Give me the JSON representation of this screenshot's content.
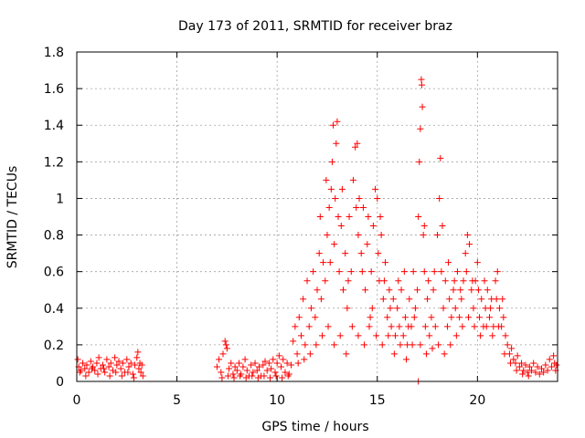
{
  "colors": {
    "series": "#ff0000",
    "grid": "#a0a0a0",
    "axis": "#000000",
    "background": "#ffffff"
  },
  "chart_data": {
    "type": "scatter",
    "title": "Day 173 of 2011, SRMTID for receiver braz",
    "xlabel": "GPS time / hours",
    "ylabel": "SRMTID / TECUs",
    "xlim": [
      0,
      24
    ],
    "ylim": [
      0,
      1.8
    ],
    "xticks": [
      0,
      5,
      10,
      15,
      20
    ],
    "yticks": [
      0,
      0.2,
      0.4,
      0.6,
      0.8,
      1,
      1.2,
      1.4,
      1.6,
      1.8
    ],
    "xtick_labels": [
      "0",
      "5",
      "10",
      "15",
      "20"
    ],
    "ytick_labels": [
      "0",
      "0.2",
      "0.4",
      "0.6",
      "0.8",
      "1",
      "1.2",
      "1.4",
      "1.6",
      "1.8"
    ],
    "grid": true,
    "marker": "+",
    "series": [
      {
        "name": "SRMTID",
        "points": [
          [
            0.05,
            0.12
          ],
          [
            0.1,
            0.08
          ],
          [
            0.2,
            0.06
          ],
          [
            0.3,
            0.1
          ],
          [
            0.4,
            0.07
          ],
          [
            0.5,
            0.09
          ],
          [
            0.6,
            0.05
          ],
          [
            0.7,
            0.11
          ],
          [
            0.8,
            0.08
          ],
          [
            0.9,
            0.06
          ],
          [
            1.0,
            0.1
          ],
          [
            1.1,
            0.13
          ],
          [
            1.2,
            0.07
          ],
          [
            1.3,
            0.09
          ],
          [
            1.4,
            0.05
          ],
          [
            1.5,
            0.12
          ],
          [
            1.6,
            0.08
          ],
          [
            1.7,
            0.1
          ],
          [
            1.8,
            0.06
          ],
          [
            1.9,
            0.13
          ],
          [
            2.0,
            0.09
          ],
          [
            2.1,
            0.11
          ],
          [
            2.2,
            0.07
          ],
          [
            2.3,
            0.1
          ],
          [
            2.4,
            0.05
          ],
          [
            2.5,
            0.12
          ],
          [
            2.6,
            0.08
          ],
          [
            2.7,
            0.1
          ],
          [
            2.8,
            0.04
          ],
          [
            2.9,
            0.09
          ],
          [
            3.0,
            0.13
          ],
          [
            3.05,
            0.16
          ],
          [
            3.1,
            0.07
          ],
          [
            3.15,
            0.1
          ],
          [
            3.2,
            0.05
          ],
          [
            3.25,
            0.09
          ],
          [
            3.3,
            0.03
          ],
          [
            0.15,
            0.05
          ],
          [
            0.45,
            0.03
          ],
          [
            0.75,
            0.07
          ],
          [
            1.05,
            0.04
          ],
          [
            1.35,
            0.07
          ],
          [
            1.65,
            0.03
          ],
          [
            1.95,
            0.05
          ],
          [
            2.25,
            0.03
          ],
          [
            2.55,
            0.05
          ],
          [
            2.85,
            0.02
          ],
          [
            7.0,
            0.08
          ],
          [
            7.1,
            0.12
          ],
          [
            7.2,
            0.05
          ],
          [
            7.3,
            0.15
          ],
          [
            7.4,
            0.22
          ],
          [
            7.45,
            0.2
          ],
          [
            7.5,
            0.18
          ],
          [
            7.6,
            0.07
          ],
          [
            7.7,
            0.1
          ],
          [
            7.8,
            0.04
          ],
          [
            7.9,
            0.08
          ],
          [
            8.0,
            0.06
          ],
          [
            8.1,
            0.1
          ],
          [
            8.2,
            0.04
          ],
          [
            8.3,
            0.08
          ],
          [
            8.4,
            0.12
          ],
          [
            8.5,
            0.06
          ],
          [
            8.6,
            0.03
          ],
          [
            8.7,
            0.09
          ],
          [
            8.8,
            0.05
          ],
          [
            8.9,
            0.1
          ],
          [
            9.0,
            0.06
          ],
          [
            9.1,
            0.08
          ],
          [
            9.2,
            0.03
          ],
          [
            9.3,
            0.09
          ],
          [
            9.4,
            0.11
          ],
          [
            9.5,
            0.06
          ],
          [
            9.6,
            0.1
          ],
          [
            9.7,
            0.07
          ],
          [
            9.8,
            0.12
          ],
          [
            9.9,
            0.05
          ],
          [
            10.0,
            0.1
          ],
          [
            10.1,
            0.14
          ],
          [
            10.2,
            0.08
          ],
          [
            10.3,
            0.12
          ],
          [
            10.4,
            0.05
          ],
          [
            10.5,
            0.1
          ],
          [
            10.6,
            0.04
          ],
          [
            10.7,
            0.09
          ],
          [
            7.25,
            0.02
          ],
          [
            7.55,
            0.03
          ],
          [
            7.85,
            0.02
          ],
          [
            8.15,
            0.03
          ],
          [
            8.45,
            0.02
          ],
          [
            8.75,
            0.03
          ],
          [
            9.05,
            0.02
          ],
          [
            9.35,
            0.03
          ],
          [
            9.65,
            0.02
          ],
          [
            9.95,
            0.03
          ],
          [
            10.25,
            0.02
          ],
          [
            10.55,
            0.03
          ],
          [
            10.8,
            0.22
          ],
          [
            10.9,
            0.3
          ],
          [
            11.0,
            0.15
          ],
          [
            11.1,
            0.35
          ],
          [
            11.2,
            0.25
          ],
          [
            11.3,
            0.45
          ],
          [
            11.4,
            0.2
          ],
          [
            11.5,
            0.55
          ],
          [
            11.6,
            0.3
          ],
          [
            11.7,
            0.4
          ],
          [
            11.8,
            0.6
          ],
          [
            11.9,
            0.35
          ],
          [
            12.0,
            0.5
          ],
          [
            12.1,
            0.7
          ],
          [
            12.2,
            0.45
          ],
          [
            12.3,
            0.65
          ],
          [
            12.4,
            0.55
          ],
          [
            12.5,
            0.8
          ],
          [
            12.6,
            0.95
          ],
          [
            12.7,
            1.05
          ],
          [
            12.75,
            1.2
          ],
          [
            12.8,
            1.4
          ],
          [
            12.85,
            0.75
          ],
          [
            12.9,
            1.0
          ],
          [
            12.95,
            1.3
          ],
          [
            13.0,
            1.42
          ],
          [
            13.05,
            0.9
          ],
          [
            13.1,
            0.6
          ],
          [
            13.2,
            0.85
          ],
          [
            13.3,
            0.5
          ],
          [
            13.4,
            0.7
          ],
          [
            13.5,
            0.4
          ],
          [
            13.6,
            0.9
          ],
          [
            13.7,
            0.6
          ],
          [
            13.8,
            1.1
          ],
          [
            13.9,
            1.28
          ],
          [
            14.0,
            1.3
          ],
          [
            14.05,
            0.8
          ],
          [
            14.1,
            1.0
          ],
          [
            14.2,
            0.7
          ],
          [
            14.3,
            0.95
          ],
          [
            14.4,
            0.5
          ],
          [
            14.5,
            0.75
          ],
          [
            14.6,
            0.3
          ],
          [
            14.7,
            0.6
          ],
          [
            14.8,
            0.85
          ],
          [
            14.9,
            1.05
          ],
          [
            15.0,
            1.0
          ],
          [
            15.05,
            0.7
          ],
          [
            15.1,
            0.55
          ],
          [
            15.2,
            0.8
          ],
          [
            15.3,
            0.45
          ],
          [
            15.4,
            0.65
          ],
          [
            15.5,
            0.35
          ],
          [
            15.6,
            0.5
          ],
          [
            15.7,
            0.3
          ],
          [
            15.8,
            0.45
          ],
          [
            15.9,
            0.25
          ],
          [
            16.0,
            0.4
          ],
          [
            16.1,
            0.3
          ],
          [
            16.2,
            0.5
          ],
          [
            16.3,
            0.25
          ],
          [
            16.4,
            0.35
          ],
          [
            16.5,
            0.2
          ],
          [
            16.6,
            0.45
          ],
          [
            16.7,
            0.3
          ],
          [
            16.8,
            0.6
          ],
          [
            16.9,
            0.4
          ],
          [
            17.0,
            0.5
          ],
          [
            17.05,
            0.9
          ],
          [
            17.1,
            1.2
          ],
          [
            17.15,
            1.38
          ],
          [
            17.2,
            1.65
          ],
          [
            17.22,
            1.62
          ],
          [
            17.25,
            1.5
          ],
          [
            17.3,
            0.8
          ],
          [
            17.35,
            0.6
          ],
          [
            17.4,
            0.3
          ],
          [
            17.5,
            0.45
          ],
          [
            17.6,
            0.25
          ],
          [
            17.7,
            0.35
          ],
          [
            17.8,
            0.5
          ],
          [
            17.9,
            0.3
          ],
          [
            18.0,
            0.8
          ],
          [
            18.1,
            1.0
          ],
          [
            18.15,
            1.22
          ],
          [
            18.2,
            0.6
          ],
          [
            18.3,
            0.4
          ],
          [
            18.4,
            0.55
          ],
          [
            18.5,
            0.3
          ],
          [
            18.6,
            0.45
          ],
          [
            18.7,
            0.35
          ],
          [
            18.8,
            0.5
          ],
          [
            18.9,
            0.4
          ],
          [
            19.0,
            0.6
          ],
          [
            19.1,
            0.35
          ],
          [
            19.2,
            0.45
          ],
          [
            19.3,
            0.55
          ],
          [
            19.4,
            0.7
          ],
          [
            19.5,
            0.8
          ],
          [
            19.6,
            0.75
          ],
          [
            19.7,
            0.5
          ],
          [
            19.8,
            0.4
          ],
          [
            19.9,
            0.55
          ],
          [
            20.0,
            0.65
          ],
          [
            20.1,
            0.35
          ],
          [
            20.2,
            0.45
          ],
          [
            20.3,
            0.3
          ],
          [
            20.4,
            0.4
          ],
          [
            20.5,
            0.5
          ],
          [
            20.6,
            0.35
          ],
          [
            20.7,
            0.45
          ],
          [
            20.8,
            0.3
          ],
          [
            20.9,
            0.55
          ],
          [
            21.0,
            0.6
          ],
          [
            21.1,
            0.4
          ],
          [
            21.2,
            0.3
          ],
          [
            21.3,
            0.35
          ],
          [
            21.4,
            0.25
          ],
          [
            21.5,
            0.2
          ],
          [
            21.6,
            0.15
          ],
          [
            21.7,
            0.18
          ],
          [
            21.8,
            0.12
          ],
          [
            21.9,
            0.1
          ],
          [
            22.0,
            0.14
          ],
          [
            22.1,
            0.08
          ],
          [
            22.2,
            0.1
          ],
          [
            22.3,
            0.06
          ],
          [
            22.4,
            0.09
          ],
          [
            22.5,
            0.05
          ],
          [
            22.6,
            0.08
          ],
          [
            22.7,
            0.06
          ],
          [
            22.8,
            0.1
          ],
          [
            22.9,
            0.05
          ],
          [
            23.0,
            0.08
          ],
          [
            23.1,
            0.04
          ],
          [
            23.2,
            0.07
          ],
          [
            23.3,
            0.05
          ],
          [
            23.4,
            0.09
          ],
          [
            23.5,
            0.06
          ],
          [
            23.6,
            0.12
          ],
          [
            23.7,
            0.08
          ],
          [
            23.8,
            0.14
          ],
          [
            23.85,
            0.1
          ],
          [
            23.9,
            0.06
          ],
          [
            23.95,
            0.09
          ],
          [
            11.05,
            0.1
          ],
          [
            11.35,
            0.12
          ],
          [
            11.65,
            0.15
          ],
          [
            11.95,
            0.2
          ],
          [
            12.25,
            0.25
          ],
          [
            12.55,
            0.3
          ],
          [
            12.85,
            0.2
          ],
          [
            13.15,
            0.25
          ],
          [
            13.45,
            0.15
          ],
          [
            13.75,
            0.3
          ],
          [
            14.05,
            0.25
          ],
          [
            14.35,
            0.2
          ],
          [
            14.65,
            0.35
          ],
          [
            14.95,
            0.25
          ],
          [
            15.25,
            0.2
          ],
          [
            15.55,
            0.25
          ],
          [
            15.85,
            0.15
          ],
          [
            16.15,
            0.2
          ],
          [
            16.45,
            0.12
          ],
          [
            16.75,
            0.2
          ],
          [
            17.05,
            0.0
          ],
          [
            17.15,
            0.2
          ],
          [
            17.45,
            0.15
          ],
          [
            17.75,
            0.18
          ],
          [
            18.05,
            0.2
          ],
          [
            18.35,
            0.15
          ],
          [
            18.65,
            0.2
          ],
          [
            18.95,
            0.25
          ],
          [
            19.25,
            0.3
          ],
          [
            19.55,
            0.35
          ],
          [
            19.85,
            0.3
          ],
          [
            20.15,
            0.25
          ],
          [
            20.45,
            0.3
          ],
          [
            20.75,
            0.25
          ],
          [
            21.05,
            0.3
          ],
          [
            21.35,
            0.15
          ],
          [
            21.65,
            0.1
          ],
          [
            21.95,
            0.06
          ],
          [
            22.25,
            0.04
          ],
          [
            22.55,
            0.03
          ],
          [
            12.15,
            0.9
          ],
          [
            12.45,
            1.1
          ],
          [
            12.65,
            0.65
          ],
          [
            13.25,
            1.05
          ],
          [
            13.55,
            0.55
          ],
          [
            13.95,
            0.95
          ],
          [
            14.25,
            0.6
          ],
          [
            14.55,
            0.9
          ],
          [
            14.75,
            0.4
          ],
          [
            15.15,
            0.9
          ],
          [
            15.35,
            0.55
          ],
          [
            15.65,
            0.4
          ],
          [
            16.05,
            0.55
          ],
          [
            16.35,
            0.6
          ],
          [
            16.55,
            0.3
          ],
          [
            16.85,
            0.35
          ],
          [
            17.35,
            0.85
          ],
          [
            17.55,
            0.55
          ],
          [
            17.85,
            0.6
          ],
          [
            18.25,
            0.85
          ],
          [
            18.55,
            0.65
          ],
          [
            18.85,
            0.55
          ],
          [
            19.15,
            0.5
          ],
          [
            19.45,
            0.6
          ],
          [
            19.75,
            0.55
          ],
          [
            20.05,
            0.5
          ],
          [
            20.35,
            0.55
          ],
          [
            20.65,
            0.4
          ],
          [
            20.95,
            0.45
          ],
          [
            21.25,
            0.45
          ]
        ]
      }
    ]
  }
}
